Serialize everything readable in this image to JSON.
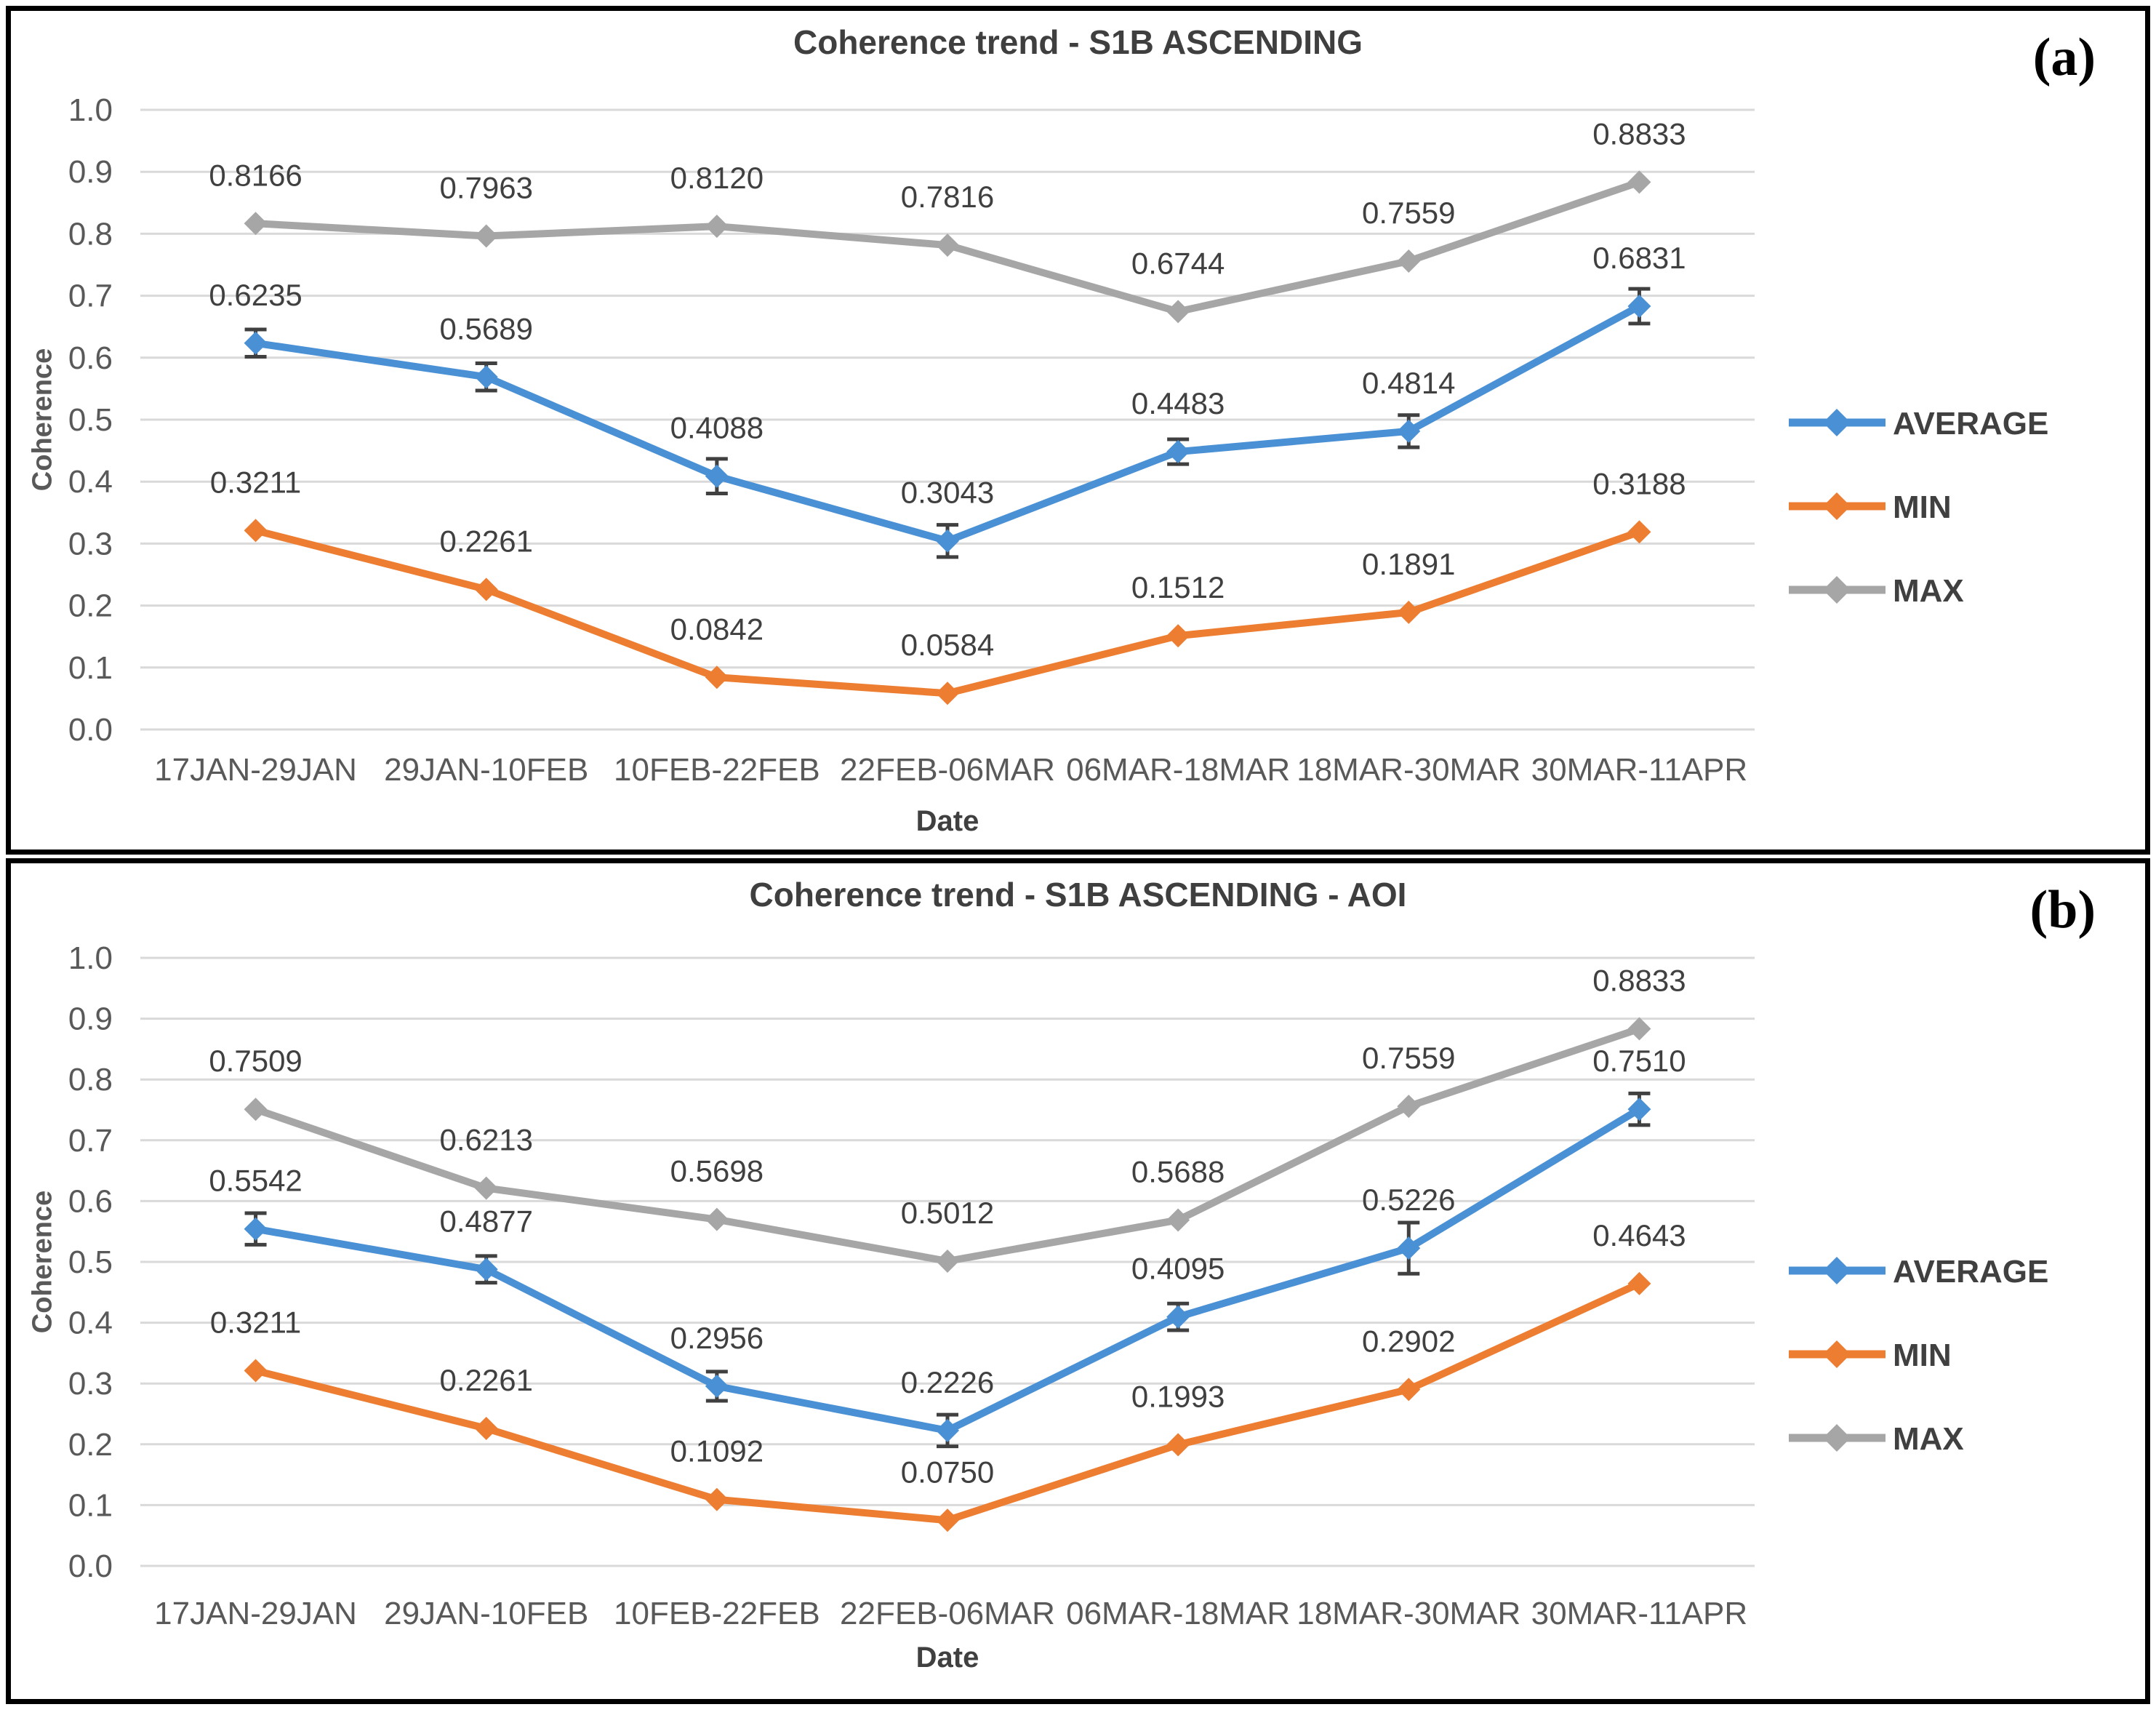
{
  "colors": {
    "average": "#4a90d5",
    "min": "#ed7d31",
    "max": "#a6a6a6",
    "grid": "#d9d9d9",
    "axis_text": "#595959",
    "label_text": "#404040",
    "title_text": "#3f3f3f",
    "error_bar": "#404040",
    "panel_border": "#000000"
  },
  "chart_data": [
    {
      "type": "line",
      "title": "Coherence trend - S1B ASCENDING",
      "panel_label": "(a)",
      "xlabel": "Date",
      "ylabel": "Coherence",
      "ylim": [
        0.0,
        1.0
      ],
      "grid": true,
      "legend_position": "right",
      "yticks": [
        "0.0",
        "0.1",
        "0.2",
        "0.3",
        "0.4",
        "0.5",
        "0.6",
        "0.7",
        "0.8",
        "0.9",
        "1.0"
      ],
      "categories": [
        "17JAN-29JAN",
        "29JAN-10FEB",
        "10FEB-22FEB",
        "22FEB-06MAR",
        "06MAR-18MAR",
        "18MAR-30MAR",
        "30MAR-11APR"
      ],
      "series": [
        {
          "name": "AVERAGE",
          "color_key": "average",
          "values": [
            0.6235,
            0.5689,
            0.4088,
            0.3043,
            0.4483,
            0.4814,
            0.6831
          ],
          "error_bars": [
            0.022,
            0.022,
            0.028,
            0.026,
            0.02,
            0.026,
            0.028
          ]
        },
        {
          "name": "MIN",
          "color_key": "min",
          "values": [
            0.3211,
            0.2261,
            0.0842,
            0.0584,
            0.1512,
            0.1891,
            0.3188
          ]
        },
        {
          "name": "MAX",
          "color_key": "max",
          "values": [
            0.8166,
            0.7963,
            0.812,
            0.7816,
            0.6744,
            0.7559,
            0.8833
          ]
        }
      ]
    },
    {
      "type": "line",
      "title": "Coherence trend - S1B ASCENDING - AOI",
      "panel_label": "(b)",
      "xlabel": "Date",
      "ylabel": "Coherence",
      "ylim": [
        0.0,
        1.0
      ],
      "grid": true,
      "legend_position": "right",
      "yticks": [
        "0.0",
        "0.1",
        "0.2",
        "0.3",
        "0.4",
        "0.5",
        "0.6",
        "0.7",
        "0.8",
        "0.9",
        "1.0"
      ],
      "categories": [
        "17JAN-29JAN",
        "29JAN-10FEB",
        "10FEB-22FEB",
        "22FEB-06MAR",
        "06MAR-18MAR",
        "18MAR-30MAR",
        "30MAR-11APR"
      ],
      "series": [
        {
          "name": "AVERAGE",
          "color_key": "average",
          "values": [
            0.5542,
            0.4877,
            0.2956,
            0.2226,
            0.4095,
            0.5226,
            0.751
          ],
          "error_bars": [
            0.026,
            0.022,
            0.024,
            0.026,
            0.022,
            0.042,
            0.026
          ]
        },
        {
          "name": "MIN",
          "color_key": "min",
          "values": [
            0.3211,
            0.2261,
            0.1092,
            0.075,
            0.1993,
            0.2902,
            0.4643
          ]
        },
        {
          "name": "MAX",
          "color_key": "max",
          "values": [
            0.7509,
            0.6213,
            0.5698,
            0.5012,
            0.5688,
            0.7559,
            0.8833
          ]
        }
      ]
    }
  ]
}
